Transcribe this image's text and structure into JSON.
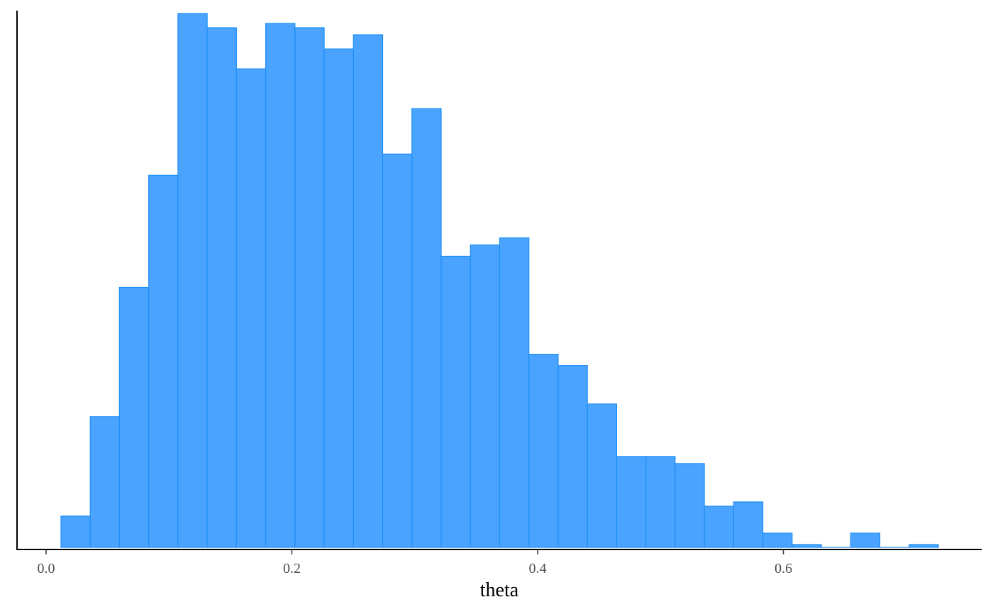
{
  "chart_data": {
    "type": "bar",
    "subtype": "histogram",
    "title": "",
    "xlabel": "theta",
    "ylabel": "",
    "xlim": [
      -0.06,
      0.762
    ],
    "ylim": [
      0,
      378
    ],
    "x_ticks": [
      "0.0",
      "0.2",
      "0.4",
      "0.6"
    ],
    "x_tick_values": [
      0.0,
      0.2,
      0.4,
      0.6
    ],
    "y_axis_labels_shown": false,
    "grid": false,
    "bin_start": 0.0121,
    "bin_width": 0.0238,
    "values": [
      22,
      92,
      183,
      262,
      376,
      366,
      337,
      369,
      366,
      351,
      361,
      277,
      309,
      205,
      213,
      218,
      136,
      128,
      101,
      64,
      64,
      59,
      29,
      32,
      10,
      2,
      0,
      10,
      0,
      2
    ],
    "colors": {
      "fill": "#4aa4ff",
      "stroke": "#1e8ef5",
      "axis": "#000000"
    }
  }
}
